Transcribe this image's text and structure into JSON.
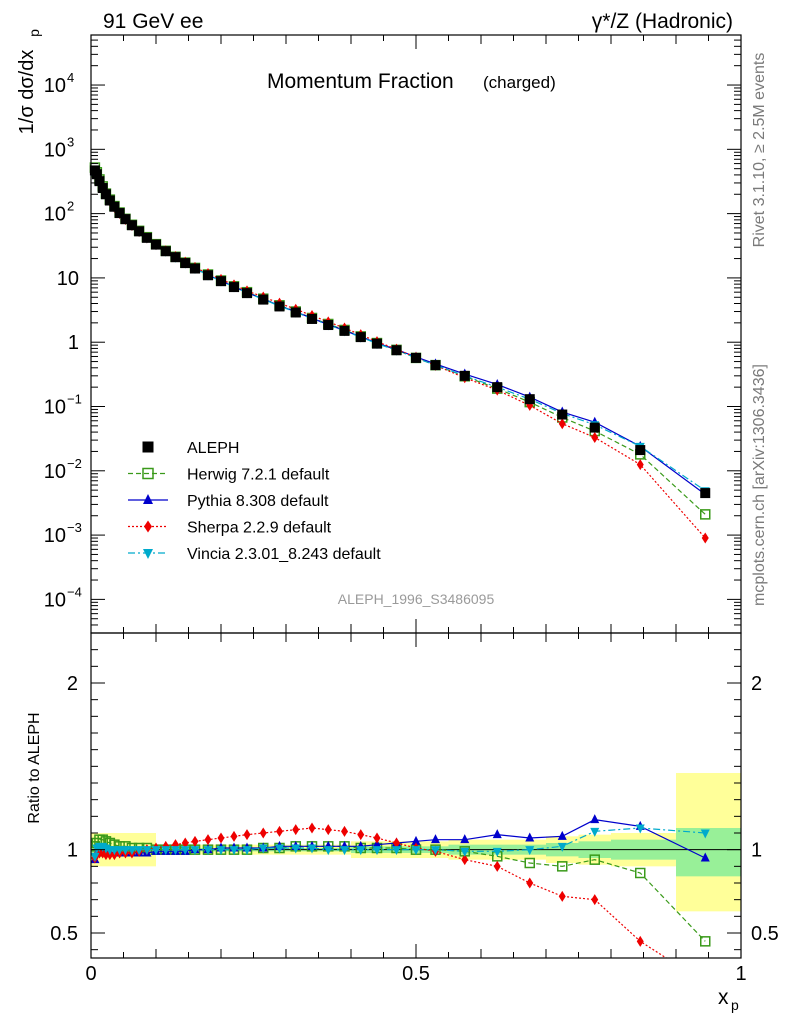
{
  "header": {
    "left": "91 GeV ee",
    "right": "γ*/Z (Hadronic)"
  },
  "side_labels": {
    "rivet": "Rivet 3.1.10, ≥ 2.5M events",
    "mcplots": "mcplots.cern.ch [arXiv:1306.3436]"
  },
  "chart_data": [
    {
      "type": "line",
      "title": "Momentum Fraction",
      "title_suffix": "(charged)",
      "ylabel": "1/σ dσ/dx_p",
      "xlabel": "",
      "yscale": "log",
      "ylim": [
        3e-05,
        60000
      ],
      "xlim": [
        0,
        1
      ],
      "annotation": "ALEPH_1996_S3486095",
      "yticks": [
        {
          "v": 0.0001,
          "base": "10",
          "exp": "−4"
        },
        {
          "v": 0.001,
          "base": "10",
          "exp": "−3"
        },
        {
          "v": 0.01,
          "base": "10",
          "exp": "−2"
        },
        {
          "v": 0.1,
          "base": "10",
          "exp": "−1"
        },
        {
          "v": 1,
          "base": "1",
          "exp": ""
        },
        {
          "v": 10,
          "base": "10",
          "exp": ""
        },
        {
          "v": 100,
          "base": "10",
          "exp": "2"
        },
        {
          "v": 1000,
          "base": "10",
          "exp": "3"
        },
        {
          "v": 10000,
          "base": "10",
          "exp": "4"
        }
      ],
      "legend_placement": "bottom-left",
      "x": [
        0.006,
        0.009,
        0.013,
        0.018,
        0.023,
        0.029,
        0.036,
        0.044,
        0.053,
        0.063,
        0.074,
        0.086,
        0.1,
        0.115,
        0.13,
        0.145,
        0.16,
        0.18,
        0.2,
        0.22,
        0.24,
        0.265,
        0.29,
        0.315,
        0.34,
        0.365,
        0.39,
        0.415,
        0.44,
        0.47,
        0.5,
        0.53,
        0.575,
        0.625,
        0.675,
        0.725,
        0.775,
        0.845,
        0.945
      ],
      "series": [
        {
          "name": "ALEPH",
          "color": "#000000",
          "marker": "square",
          "values": [
            470,
            410,
            320,
            250,
            200,
            160,
            128,
            102,
            82,
            66,
            53,
            42,
            33,
            26,
            21,
            17,
            14,
            11,
            8.9,
            7.2,
            5.8,
            4.6,
            3.6,
            2.9,
            2.3,
            1.85,
            1.5,
            1.2,
            0.95,
            0.75,
            0.57,
            0.44,
            0.3,
            0.2,
            0.13,
            0.075,
            0.047,
            0.021,
            0.0045
          ]
        },
        {
          "name": "Herwig 7.2.1 default",
          "color": "#3a9a1a",
          "marker": "open-square",
          "values": [
            520,
            440,
            340,
            265,
            205,
            165,
            131,
            104,
            83,
            67,
            54,
            43,
            33.5,
            26.4,
            21.3,
            17.3,
            14.3,
            11.3,
            9.1,
            7.4,
            6.0,
            4.75,
            3.75,
            3.0,
            2.38,
            1.92,
            1.55,
            1.23,
            0.97,
            0.76,
            0.57,
            0.44,
            0.295,
            0.19,
            0.117,
            0.0675,
            0.0415,
            0.018,
            0.0021
          ]
        },
        {
          "name": "Pythia 8.308 default",
          "color": "#0000cc",
          "marker": "triangle-up",
          "values": [
            440,
            400,
            315,
            245,
            195,
            157,
            126,
            100,
            81,
            65,
            52.5,
            41.6,
            32.8,
            25.9,
            20.9,
            16.9,
            14,
            11.1,
            9,
            7.3,
            5.9,
            4.7,
            3.7,
            2.97,
            2.35,
            1.88,
            1.52,
            1.22,
            0.97,
            0.77,
            0.59,
            0.46,
            0.32,
            0.22,
            0.14,
            0.082,
            0.057,
            0.024,
            0.0043
          ]
        },
        {
          "name": "Sherpa 2.2.9 default",
          "color": "#ee0000",
          "marker": "diamond",
          "values": [
            450,
            400,
            315,
            245,
            195,
            156,
            125,
            100,
            80.5,
            65,
            52.5,
            41.8,
            33,
            26.4,
            21.5,
            17.6,
            14.6,
            11.7,
            9.5,
            7.8,
            6.3,
            5.05,
            4.05,
            3.25,
            2.6,
            2.07,
            1.66,
            1.31,
            1.02,
            0.78,
            0.58,
            0.435,
            0.28,
            0.18,
            0.104,
            0.054,
            0.033,
            0.0125,
            0.0009
          ]
        },
        {
          "name": "Vincia 2.3.01_8.243 default",
          "color": "#00aacc",
          "marker": "triangle-down",
          "values": [
            480,
            420,
            330,
            255,
            200,
            160,
            128,
            102,
            82,
            66,
            53,
            42,
            33,
            26,
            21,
            17,
            14,
            11.1,
            8.95,
            7.25,
            5.85,
            4.65,
            3.65,
            2.93,
            2.32,
            1.86,
            1.5,
            1.2,
            0.95,
            0.75,
            0.57,
            0.44,
            0.3,
            0.2,
            0.13,
            0.078,
            0.052,
            0.024,
            0.0049
          ]
        }
      ]
    },
    {
      "type": "line",
      "title": "",
      "ylabel": "Ratio to ALEPH",
      "xlabel": "x_p",
      "ylim": [
        0.35,
        2.3
      ],
      "xlim": [
        0,
        1
      ],
      "yticks": [
        0.5,
        1,
        2
      ],
      "xticks": [
        0,
        0.5,
        1
      ],
      "reference_line": 1,
      "band_colors": {
        "inner": "#98f098",
        "outer": "#ffff99"
      },
      "x": [
        0.006,
        0.009,
        0.013,
        0.018,
        0.023,
        0.029,
        0.036,
        0.044,
        0.053,
        0.063,
        0.074,
        0.086,
        0.1,
        0.115,
        0.13,
        0.145,
        0.16,
        0.18,
        0.2,
        0.22,
        0.24,
        0.265,
        0.29,
        0.315,
        0.34,
        0.365,
        0.39,
        0.415,
        0.44,
        0.47,
        0.5,
        0.53,
        0.575,
        0.625,
        0.675,
        0.725,
        0.775,
        0.845,
        0.945
      ],
      "bands": [
        {
          "x0": 0.0,
          "x1": 0.1,
          "inner": [
            0.98,
            1.02
          ],
          "outer": [
            0.9,
            1.1
          ]
        },
        {
          "x0": 0.1,
          "x1": 0.4,
          "inner": [
            0.99,
            1.01
          ],
          "outer": [
            0.97,
            1.03
          ]
        },
        {
          "x0": 0.4,
          "x1": 0.55,
          "inner": [
            0.98,
            1.02
          ],
          "outer": [
            0.95,
            1.05
          ]
        },
        {
          "x0": 0.55,
          "x1": 0.7,
          "inner": [
            0.97,
            1.03
          ],
          "outer": [
            0.94,
            1.06
          ]
        },
        {
          "x0": 0.7,
          "x1": 0.75,
          "inner": [
            0.96,
            1.04
          ],
          "outer": [
            0.92,
            1.08
          ]
        },
        {
          "x0": 0.75,
          "x1": 0.8,
          "inner": [
            0.95,
            1.05
          ],
          "outer": [
            0.91,
            1.09
          ]
        },
        {
          "x0": 0.8,
          "x1": 0.9,
          "inner": [
            0.94,
            1.06
          ],
          "outer": [
            0.9,
            1.1
          ]
        },
        {
          "x0": 0.9,
          "x1": 1.0,
          "inner": [
            0.84,
            1.13
          ],
          "outer": [
            0.63,
            1.46
          ]
        }
      ],
      "series": [
        {
          "name": "Herwig 7.2.1 default",
          "color": "#3a9a1a",
          "marker": "open-square",
          "values": [
            1.02,
            1.04,
            1.06,
            1.06,
            1.05,
            1.04,
            1.03,
            1.02,
            1.02,
            1.01,
            1.01,
            1.01,
            1.0,
            1.0,
            1.0,
            1.0,
            1.0,
            1.0,
            1.0,
            1.0,
            1.0,
            1.01,
            1.01,
            1.02,
            1.02,
            1.02,
            1.02,
            1.01,
            1.01,
            1.01,
            1.0,
            1.0,
            0.99,
            0.96,
            0.92,
            0.9,
            0.94,
            0.86,
            0.45
          ]
        },
        {
          "name": "Pythia 8.308 default",
          "color": "#0000cc",
          "marker": "triangle-up",
          "values": [
            0.94,
            0.98,
            0.98,
            0.98,
            0.98,
            0.98,
            0.98,
            0.98,
            0.98,
            0.98,
            0.98,
            0.98,
            0.99,
            0.99,
            0.99,
            0.99,
            1.0,
            1.0,
            1.01,
            1.01,
            1.01,
            1.01,
            1.02,
            1.02,
            1.02,
            1.02,
            1.02,
            1.02,
            1.03,
            1.04,
            1.05,
            1.06,
            1.06,
            1.09,
            1.07,
            1.08,
            1.18,
            1.14,
            0.95
          ]
        },
        {
          "name": "Sherpa 2.2.9 default",
          "color": "#ee0000",
          "marker": "diamond",
          "values": [
            0.95,
            0.97,
            0.98,
            0.98,
            0.97,
            0.97,
            0.97,
            0.98,
            0.98,
            0.98,
            0.99,
            1.0,
            1.01,
            1.02,
            1.03,
            1.04,
            1.05,
            1.06,
            1.07,
            1.08,
            1.09,
            1.1,
            1.11,
            1.12,
            1.13,
            1.12,
            1.11,
            1.09,
            1.07,
            1.04,
            1.01,
            0.99,
            0.94,
            0.9,
            0.8,
            0.72,
            0.7,
            0.45,
            0.2
          ]
        },
        {
          "name": "Vincia 2.3.01_8.243 default",
          "color": "#00aacc",
          "marker": "triangle-down",
          "values": [
            0.96,
            1.01,
            1.02,
            1.02,
            1.01,
            1.0,
            1.0,
            1.0,
            1.0,
            1.0,
            1.0,
            1.0,
            1.0,
            1.0,
            1.0,
            1.0,
            1.0,
            1.0,
            1.0,
            1.0,
            1.0,
            1.01,
            1.01,
            1.01,
            1.01,
            1.0,
            1.0,
            1.0,
            1.0,
            1.0,
            1.0,
            1.0,
            0.99,
            0.99,
            1.0,
            1.02,
            1.11,
            1.13,
            1.1
          ]
        }
      ]
    }
  ]
}
